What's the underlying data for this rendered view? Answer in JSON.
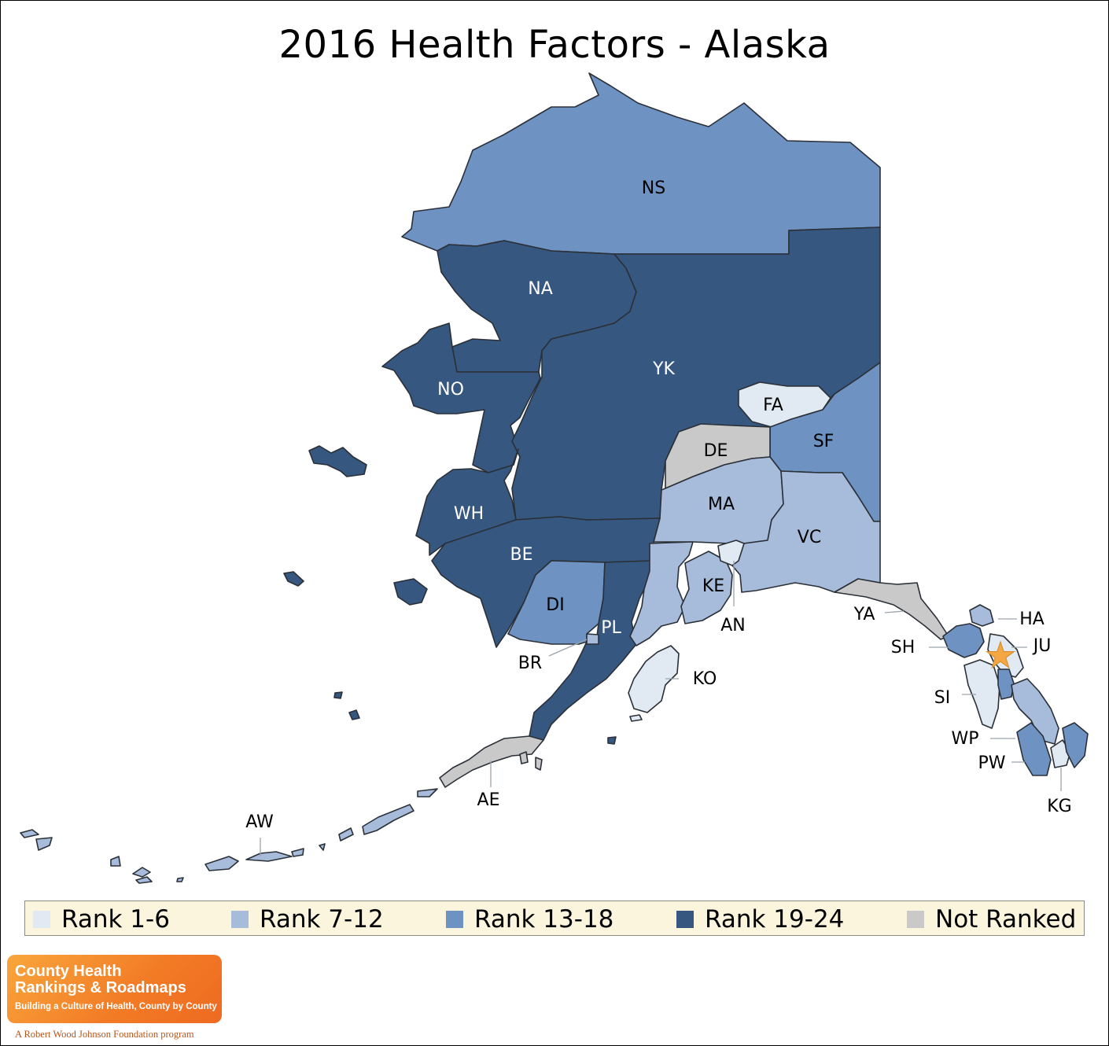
{
  "title": "2016 Health Factors - Alaska",
  "legend": [
    {
      "label": "Rank 1-6",
      "color": "#e1e9f3"
    },
    {
      "label": "Rank 7-12",
      "color": "#a6bcda"
    },
    {
      "label": "Rank 13-18",
      "color": "#6e92c2"
    },
    {
      "label": "Rank 19-24",
      "color": "#36577f"
    },
    {
      "label": "Not Ranked",
      "color": "#c9c9c9"
    }
  ],
  "regions": [
    {
      "code": "NS",
      "rank_group": "Rank 13-18"
    },
    {
      "code": "NA",
      "rank_group": "Rank 19-24"
    },
    {
      "code": "YK",
      "rank_group": "Rank 19-24"
    },
    {
      "code": "NO",
      "rank_group": "Rank 19-24"
    },
    {
      "code": "FA",
      "rank_group": "Rank 1-6"
    },
    {
      "code": "SF",
      "rank_group": "Rank 13-18"
    },
    {
      "code": "DE",
      "rank_group": "Not Ranked"
    },
    {
      "code": "MA",
      "rank_group": "Rank 7-12"
    },
    {
      "code": "VC",
      "rank_group": "Rank 7-12"
    },
    {
      "code": "WH",
      "rank_group": "Rank 19-24"
    },
    {
      "code": "BE",
      "rank_group": "Rank 19-24"
    },
    {
      "code": "DI",
      "rank_group": "Rank 13-18"
    },
    {
      "code": "PL",
      "rank_group": "Rank 19-24"
    },
    {
      "code": "KE",
      "rank_group": "Rank 7-12"
    },
    {
      "code": "AN",
      "rank_group": "Rank 1-6"
    },
    {
      "code": "YA",
      "rank_group": "Not Ranked"
    },
    {
      "code": "KO",
      "rank_group": "Rank 1-6"
    },
    {
      "code": "BR",
      "rank_group": "Rank 7-12"
    },
    {
      "code": "AE",
      "rank_group": "Not Ranked"
    },
    {
      "code": "AW",
      "rank_group": "Rank 7-12"
    },
    {
      "code": "HA",
      "rank_group": "Rank 7-12"
    },
    {
      "code": "SH",
      "rank_group": "Rank 13-18"
    },
    {
      "code": "JU",
      "rank_group": "Rank 1-6"
    },
    {
      "code": "SI",
      "rank_group": "Rank 1-6"
    },
    {
      "code": "WP",
      "rank_group": "Rank 7-12"
    },
    {
      "code": "PW",
      "rank_group": "Rank 13-18"
    },
    {
      "code": "KG",
      "rank_group": "Rank 1-6"
    }
  ],
  "marker": {
    "icon": "star-icon",
    "color": "#f4a742",
    "region": "JU"
  },
  "logo": {
    "line1": "County Health",
    "line2": "Rankings & Roadmaps",
    "tagline": "Building a Culture of Health, County by County",
    "footer": "A Robert Wood Johnson Foundation program"
  }
}
